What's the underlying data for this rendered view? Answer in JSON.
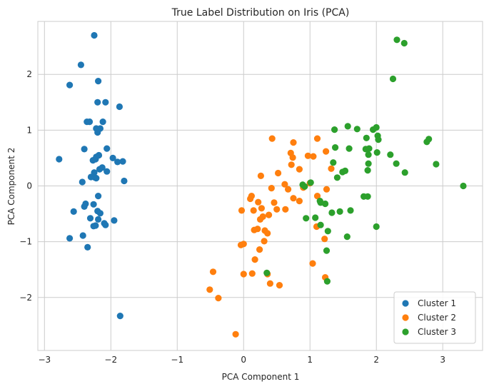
{
  "chart_data": {
    "type": "scatter",
    "title": "True Label Distribution on Iris (PCA)",
    "xlabel": "PCA Component 1",
    "ylabel": "PCA Component 2",
    "xlim": [
      -3.1,
      3.6
    ],
    "ylim": [
      -2.95,
      2.95
    ],
    "xticks": [
      -3,
      -2,
      -1,
      0,
      1,
      2,
      3
    ],
    "yticks": [
      -2,
      -1,
      0,
      1,
      2
    ],
    "xtick_labels": [
      "−3",
      "−2",
      "−1",
      "0",
      "1",
      "2",
      "3"
    ],
    "ytick_labels": [
      "−2",
      "−1",
      "0",
      "1",
      "2"
    ],
    "grid": true,
    "legend_position": "bottom-right",
    "series": [
      {
        "name": "Cluster 1",
        "color": "#1f77b4",
        "points": [
          [
            -2.25,
            2.7
          ],
          [
            -2.45,
            2.17
          ],
          [
            -2.62,
            1.81
          ],
          [
            -2.19,
            1.88
          ],
          [
            -2.2,
            1.5
          ],
          [
            -2.08,
            1.5
          ],
          [
            -1.87,
            1.42
          ],
          [
            -2.36,
            1.15
          ],
          [
            -2.32,
            1.15
          ],
          [
            -2.12,
            1.15
          ],
          [
            -2.22,
            1.03
          ],
          [
            -2.16,
            1.03
          ],
          [
            -2.2,
            0.96
          ],
          [
            -2.4,
            0.66
          ],
          [
            -2.06,
            0.67
          ],
          [
            -2.23,
            0.48
          ],
          [
            -2.27,
            0.46
          ],
          [
            -2.18,
            0.55
          ],
          [
            -2.22,
            0.52
          ],
          [
            -1.97,
            0.5
          ],
          [
            -1.9,
            0.43
          ],
          [
            -1.82,
            0.44
          ],
          [
            -2.78,
            0.48
          ],
          [
            -2.3,
            0.16
          ],
          [
            -2.25,
            0.24
          ],
          [
            -2.17,
            0.3
          ],
          [
            -2.13,
            0.33
          ],
          [
            -2.06,
            0.26
          ],
          [
            -2.24,
            0.15
          ],
          [
            -1.8,
            0.09
          ],
          [
            -2.43,
            0.07
          ],
          [
            -2.22,
            0.14
          ],
          [
            -2.19,
            -0.18
          ],
          [
            -2.38,
            -0.32
          ],
          [
            -2.4,
            -0.37
          ],
          [
            -2.26,
            -0.33
          ],
          [
            -2.56,
            -0.46
          ],
          [
            -2.2,
            -0.45
          ],
          [
            -2.16,
            -0.49
          ],
          [
            -2.31,
            -0.58
          ],
          [
            -2.19,
            -0.6
          ],
          [
            -2.1,
            -0.67
          ],
          [
            -2.08,
            -0.7
          ],
          [
            -2.23,
            -0.71
          ],
          [
            -1.95,
            -0.62
          ],
          [
            -2.62,
            -0.94
          ],
          [
            -2.42,
            -0.89
          ],
          [
            -2.35,
            -1.1
          ],
          [
            -1.86,
            -2.33
          ],
          [
            -2.26,
            -0.72
          ]
        ]
      },
      {
        "name": "Cluster 2",
        "color": "#ff7f0e",
        "points": [
          [
            0.43,
            0.85
          ],
          [
            0.75,
            0.78
          ],
          [
            1.11,
            0.85
          ],
          [
            0.71,
            0.59
          ],
          [
            0.97,
            0.54
          ],
          [
            1.05,
            0.53
          ],
          [
            1.24,
            0.62
          ],
          [
            0.74,
            0.51
          ],
          [
            1.32,
            0.31
          ],
          [
            0.72,
            0.38
          ],
          [
            0.84,
            0.3
          ],
          [
            0.52,
            0.23
          ],
          [
            0.26,
            0.18
          ],
          [
            0.62,
            0.03
          ],
          [
            0.67,
            -0.06
          ],
          [
            0.9,
            -0.03
          ],
          [
            1.0,
            0.05
          ],
          [
            1.11,
            -0.18
          ],
          [
            1.25,
            -0.06
          ],
          [
            0.42,
            -0.04
          ],
          [
            0.12,
            -0.18
          ],
          [
            0.1,
            -0.23
          ],
          [
            0.22,
            -0.29
          ],
          [
            0.27,
            -0.4
          ],
          [
            0.46,
            -0.3
          ],
          [
            0.5,
            -0.42
          ],
          [
            0.63,
            -0.42
          ],
          [
            0.75,
            -0.22
          ],
          [
            0.84,
            -0.27
          ],
          [
            -0.03,
            -0.44
          ],
          [
            0.15,
            -0.44
          ],
          [
            0.29,
            -0.55
          ],
          [
            0.25,
            -0.6
          ],
          [
            0.38,
            -0.52
          ],
          [
            0.16,
            -0.79
          ],
          [
            0.21,
            -0.77
          ],
          [
            0.32,
            -0.8
          ],
          [
            0.36,
            -0.85
          ],
          [
            0.31,
            -0.99
          ],
          [
            -0.04,
            -1.06
          ],
          [
            0.0,
            -1.04
          ],
          [
            0.24,
            -1.14
          ],
          [
            1.1,
            -0.73
          ],
          [
            1.22,
            -0.95
          ],
          [
            1.04,
            -1.39
          ],
          [
            0.17,
            -1.32
          ],
          [
            0.0,
            -1.58
          ],
          [
            0.13,
            -1.57
          ],
          [
            1.23,
            -1.64
          ],
          [
            0.36,
            -1.58
          ],
          [
            0.4,
            -1.75
          ],
          [
            0.54,
            -1.78
          ],
          [
            -0.46,
            -1.54
          ],
          [
            -0.51,
            -1.86
          ],
          [
            -0.38,
            -2.01
          ],
          [
            -0.12,
            -2.66
          ]
        ]
      },
      {
        "name": "Cluster 3",
        "color": "#2ca02c",
        "points": [
          [
            2.31,
            2.62
          ],
          [
            2.42,
            2.56
          ],
          [
            2.25,
            1.92
          ],
          [
            1.57,
            1.07
          ],
          [
            1.71,
            1.02
          ],
          [
            1.95,
            1.01
          ],
          [
            2.0,
            1.05
          ],
          [
            1.37,
            1.01
          ],
          [
            2.02,
            0.9
          ],
          [
            2.03,
            0.83
          ],
          [
            2.79,
            0.84
          ],
          [
            2.76,
            0.79
          ],
          [
            1.85,
            0.86
          ],
          [
            1.38,
            0.69
          ],
          [
            1.59,
            0.67
          ],
          [
            1.84,
            0.66
          ],
          [
            1.89,
            0.67
          ],
          [
            1.88,
            0.56
          ],
          [
            2.01,
            0.6
          ],
          [
            2.21,
            0.56
          ],
          [
            1.88,
            0.4
          ],
          [
            2.3,
            0.4
          ],
          [
            1.35,
            0.42
          ],
          [
            1.87,
            0.28
          ],
          [
            2.43,
            0.24
          ],
          [
            2.9,
            0.39
          ],
          [
            3.31,
            0.0
          ],
          [
            1.49,
            0.25
          ],
          [
            1.53,
            0.27
          ],
          [
            1.41,
            0.15
          ],
          [
            0.89,
            0.02
          ],
          [
            0.92,
            -0.01
          ],
          [
            1.01,
            0.06
          ],
          [
            1.15,
            -0.27
          ],
          [
            1.23,
            -0.32
          ],
          [
            1.45,
            -0.46
          ],
          [
            1.33,
            -0.48
          ],
          [
            1.61,
            -0.44
          ],
          [
            1.81,
            -0.19
          ],
          [
            1.87,
            -0.19
          ],
          [
            2.0,
            -0.73
          ],
          [
            0.94,
            -0.58
          ],
          [
            1.08,
            -0.57
          ],
          [
            1.16,
            -0.7
          ],
          [
            1.27,
            -0.81
          ],
          [
            1.56,
            -0.91
          ],
          [
            1.25,
            -1.16
          ],
          [
            0.35,
            -1.56
          ],
          [
            1.26,
            -1.71
          ],
          [
            1.16,
            -0.3
          ]
        ]
      }
    ]
  }
}
